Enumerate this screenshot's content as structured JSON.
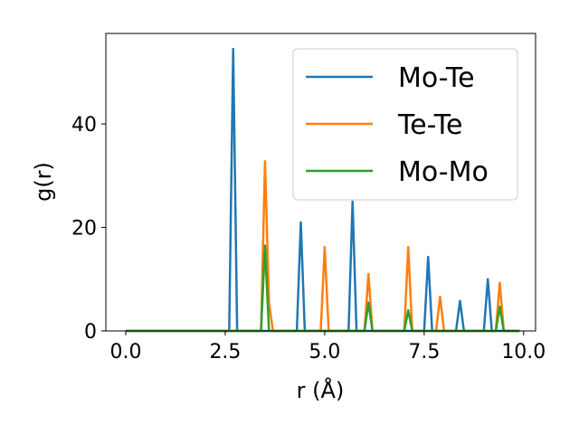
{
  "chart_data": {
    "type": "line",
    "title": "",
    "xlabel": "r (Å)",
    "ylabel": "g(r)",
    "xlim": [
      -0.5,
      10.3
    ],
    "ylim": [
      0,
      57.5
    ],
    "x_ticks": [
      0.0,
      2.5,
      5.0,
      7.5,
      10.0
    ],
    "x_tick_labels": [
      "0.0",
      "2.5",
      "5.0",
      "7.5",
      "10.0"
    ],
    "y_ticks": [
      0,
      20,
      40
    ],
    "y_tick_labels": [
      "0",
      "20",
      "40"
    ],
    "grid": false,
    "legend_position": "top-right",
    "series": [
      {
        "name": "Mo-Te",
        "color": "#1f77b4",
        "points": [
          [
            0.0,
            0
          ],
          [
            2.6,
            0
          ],
          [
            2.7,
            54.5
          ],
          [
            2.8,
            0
          ],
          [
            4.3,
            0
          ],
          [
            4.4,
            21.0
          ],
          [
            4.5,
            0
          ],
          [
            5.6,
            0
          ],
          [
            5.7,
            25.0
          ],
          [
            5.8,
            0
          ],
          [
            7.5,
            0
          ],
          [
            7.6,
            14.3
          ],
          [
            7.7,
            0
          ],
          [
            8.3,
            0
          ],
          [
            8.4,
            5.8
          ],
          [
            8.5,
            0
          ],
          [
            9.0,
            0
          ],
          [
            9.1,
            10.0
          ],
          [
            9.2,
            0
          ],
          [
            9.9,
            0
          ]
        ]
      },
      {
        "name": "Te-Te",
        "color": "#ff7f0e",
        "points": [
          [
            0.0,
            0
          ],
          [
            3.4,
            0
          ],
          [
            3.5,
            32.8
          ],
          [
            3.6,
            5.5
          ],
          [
            3.7,
            0
          ],
          [
            4.9,
            0
          ],
          [
            5.0,
            16.2
          ],
          [
            5.1,
            0
          ],
          [
            6.0,
            0
          ],
          [
            6.1,
            11.0
          ],
          [
            6.2,
            0
          ],
          [
            7.0,
            0
          ],
          [
            7.1,
            16.2
          ],
          [
            7.2,
            0
          ],
          [
            7.8,
            0
          ],
          [
            7.9,
            6.6
          ],
          [
            8.0,
            0
          ],
          [
            9.3,
            0
          ],
          [
            9.4,
            9.3
          ],
          [
            9.5,
            0
          ],
          [
            9.9,
            0
          ]
        ]
      },
      {
        "name": "Mo-Mo",
        "color": "#2ca02c",
        "points": [
          [
            0.0,
            0
          ],
          [
            3.4,
            0
          ],
          [
            3.5,
            16.5
          ],
          [
            3.6,
            0
          ],
          [
            6.0,
            0
          ],
          [
            6.1,
            5.5
          ],
          [
            6.2,
            0
          ],
          [
            7.0,
            0
          ],
          [
            7.1,
            4.0
          ],
          [
            7.2,
            0
          ],
          [
            9.3,
            0
          ],
          [
            9.4,
            4.7
          ],
          [
            9.5,
            0
          ],
          [
            9.9,
            0
          ]
        ]
      }
    ]
  }
}
